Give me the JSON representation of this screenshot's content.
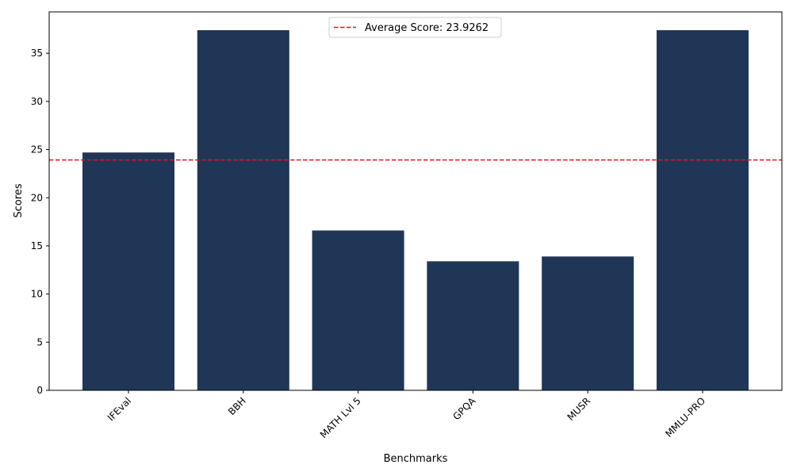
{
  "chart_data": {
    "type": "bar",
    "categories": [
      "IFEval",
      "BBH",
      "MATH Lvl 5",
      "GPQA",
      "MUSR",
      "MMLU-PRO"
    ],
    "values": [
      24.7,
      37.4,
      16.6,
      13.4,
      13.9,
      37.4
    ],
    "xlabel": "Benchmarks",
    "ylabel": "Scores",
    "ylim": [
      0,
      39.3
    ],
    "yticks": [
      0,
      5,
      10,
      15,
      20,
      25,
      30,
      35
    ],
    "bar_color": "#1f3657",
    "average": {
      "value": 23.9262,
      "label": "Average Score: 23.9262",
      "color": "#e8141b",
      "style": "dashed"
    },
    "grid": false,
    "legend_position": "top-center"
  }
}
